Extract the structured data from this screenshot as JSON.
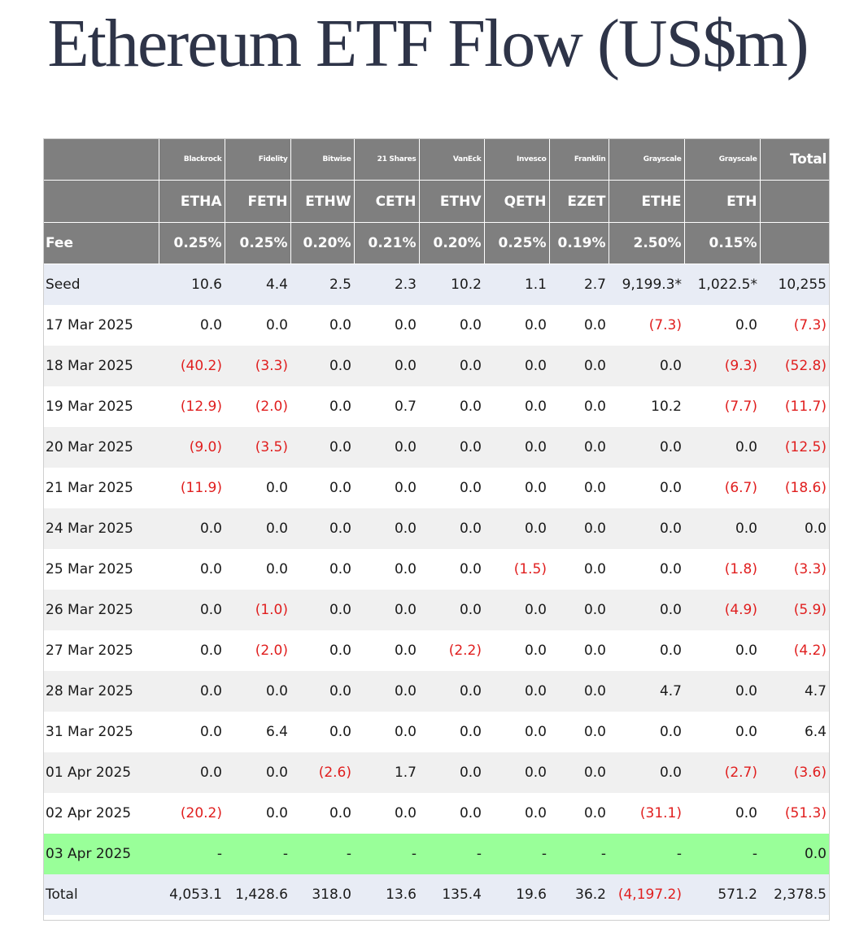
{
  "title": "Ethereum ETF Flow (US$m)",
  "header": {
    "issuers": [
      "Blackrock",
      "Fidelity",
      "Bitwise",
      "21 Shares",
      "VanEck",
      "Invesco",
      "Franklin",
      "Grayscale",
      "Grayscale"
    ],
    "total_label": "Total",
    "tickers": [
      "ETHA",
      "FETH",
      "ETHW",
      "CETH",
      "ETHV",
      "QETH",
      "EZET",
      "ETHE",
      "ETH"
    ],
    "fee_label": "Fee",
    "fees": [
      "0.25%",
      "0.25%",
      "0.20%",
      "0.21%",
      "0.20%",
      "0.25%",
      "0.19%",
      "2.50%",
      "0.15%"
    ]
  },
  "rows": [
    {
      "label": "Seed",
      "style": "seed",
      "values": [
        "10.6",
        "4.4",
        "2.5",
        "2.3",
        "10.2",
        "1.1",
        "2.7",
        "9,199.3*",
        "1,022.5*",
        "10,255"
      ]
    },
    {
      "label": "17 Mar 2025",
      "style": "row-even",
      "values": [
        "0.0",
        "0.0",
        "0.0",
        "0.0",
        "0.0",
        "0.0",
        "0.0",
        "(7.3)",
        "0.0",
        "(7.3)"
      ]
    },
    {
      "label": "18 Mar 2025",
      "style": "row-odd",
      "values": [
        "(40.2)",
        "(3.3)",
        "0.0",
        "0.0",
        "0.0",
        "0.0",
        "0.0",
        "0.0",
        "(9.3)",
        "(52.8)"
      ]
    },
    {
      "label": "19 Mar 2025",
      "style": "row-even",
      "values": [
        "(12.9)",
        "(2.0)",
        "0.0",
        "0.7",
        "0.0",
        "0.0",
        "0.0",
        "10.2",
        "(7.7)",
        "(11.7)"
      ]
    },
    {
      "label": "20 Mar 2025",
      "style": "row-odd",
      "values": [
        "(9.0)",
        "(3.5)",
        "0.0",
        "0.0",
        "0.0",
        "0.0",
        "0.0",
        "0.0",
        "0.0",
        "(12.5)"
      ]
    },
    {
      "label": "21 Mar 2025",
      "style": "row-even",
      "values": [
        "(11.9)",
        "0.0",
        "0.0",
        "0.0",
        "0.0",
        "0.0",
        "0.0",
        "0.0",
        "(6.7)",
        "(18.6)"
      ]
    },
    {
      "label": "24 Mar 2025",
      "style": "row-odd",
      "values": [
        "0.0",
        "0.0",
        "0.0",
        "0.0",
        "0.0",
        "0.0",
        "0.0",
        "0.0",
        "0.0",
        "0.0"
      ]
    },
    {
      "label": "25 Mar 2025",
      "style": "row-even",
      "values": [
        "0.0",
        "0.0",
        "0.0",
        "0.0",
        "0.0",
        "(1.5)",
        "0.0",
        "0.0",
        "(1.8)",
        "(3.3)"
      ]
    },
    {
      "label": "26 Mar 2025",
      "style": "row-odd",
      "values": [
        "0.0",
        "(1.0)",
        "0.0",
        "0.0",
        "0.0",
        "0.0",
        "0.0",
        "0.0",
        "(4.9)",
        "(5.9)"
      ]
    },
    {
      "label": "27 Mar 2025",
      "style": "row-even",
      "values": [
        "0.0",
        "(2.0)",
        "0.0",
        "0.0",
        "(2.2)",
        "0.0",
        "0.0",
        "0.0",
        "0.0",
        "(4.2)"
      ]
    },
    {
      "label": "28 Mar 2025",
      "style": "row-odd",
      "values": [
        "0.0",
        "0.0",
        "0.0",
        "0.0",
        "0.0",
        "0.0",
        "0.0",
        "4.7",
        "0.0",
        "4.7"
      ]
    },
    {
      "label": "31 Mar 2025",
      "style": "row-even",
      "values": [
        "0.0",
        "6.4",
        "0.0",
        "0.0",
        "0.0",
        "0.0",
        "0.0",
        "0.0",
        "0.0",
        "6.4"
      ]
    },
    {
      "label": "01 Apr 2025",
      "style": "row-odd",
      "values": [
        "0.0",
        "0.0",
        "(2.6)",
        "1.7",
        "0.0",
        "0.0",
        "0.0",
        "0.0",
        "(2.7)",
        "(3.6)"
      ]
    },
    {
      "label": "02 Apr 2025",
      "style": "row-even",
      "values": [
        "(20.2)",
        "0.0",
        "0.0",
        "0.0",
        "0.0",
        "0.0",
        "0.0",
        "(31.1)",
        "0.0",
        "(51.3)"
      ]
    },
    {
      "label": "03 Apr 2025",
      "style": "today",
      "values": [
        "-",
        "-",
        "-",
        "-",
        "-",
        "-",
        "-",
        "-",
        "-",
        "0.0"
      ]
    },
    {
      "label": "Total",
      "style": "total-row",
      "values": [
        "4,053.1",
        "1,428.6",
        "318.0",
        "13.6",
        "135.4",
        "19.6",
        "36.2",
        "(4,197.2)",
        "571.2",
        "2,378.5"
      ]
    }
  ],
  "colors": {
    "header_bg": "#7f7f7f",
    "negative": "#e01e1e",
    "highlight_row": "#99ff99",
    "seed_total_bg": "#e8ecf5",
    "alt_row": "#f0f0f0",
    "title": "#2e3448"
  }
}
